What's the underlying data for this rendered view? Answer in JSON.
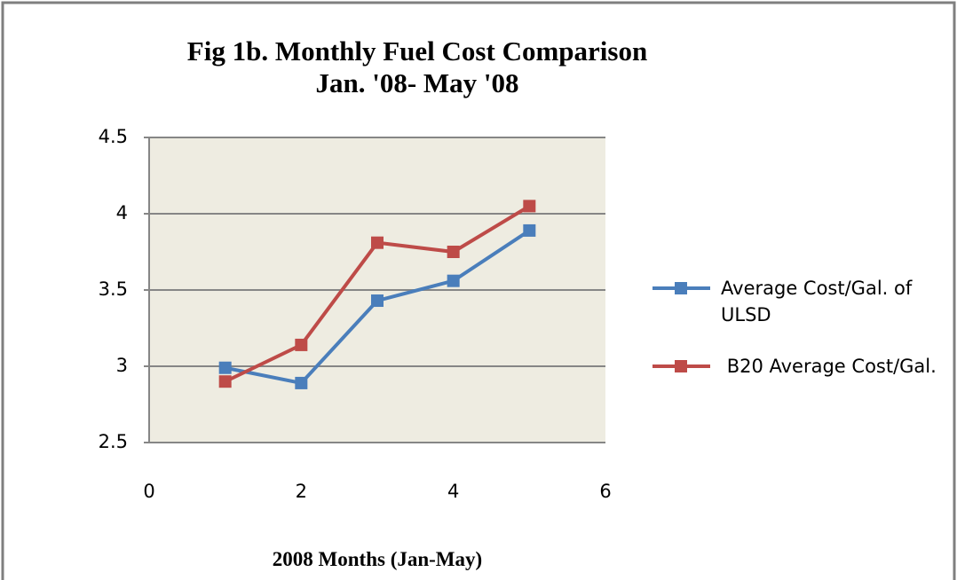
{
  "chart_data": {
    "type": "line",
    "title": "Fig 1b. Monthly Fuel Cost Comparison\nJan. '08- May '08",
    "x_label": "2008 Months (Jan-May)",
    "x": [
      1,
      2,
      3,
      4,
      5
    ],
    "series": [
      {
        "name": "Average Cost/Gal. of ULSD",
        "color": "#4a7ebb",
        "values": [
          2.99,
          2.89,
          3.43,
          3.56,
          3.89
        ]
      },
      {
        "name": " B20 Average Cost/Gal.",
        "color": "#be4b48",
        "values": [
          2.9,
          3.14,
          3.81,
          3.75,
          4.05
        ]
      }
    ],
    "xlim": [
      0,
      6
    ],
    "xticks": [
      0,
      2,
      4,
      6
    ],
    "ylim": [
      2.5,
      4.5
    ],
    "yticks": [
      2.5,
      3,
      3.5,
      4,
      4.5
    ],
    "grid": true,
    "legend": "right"
  }
}
